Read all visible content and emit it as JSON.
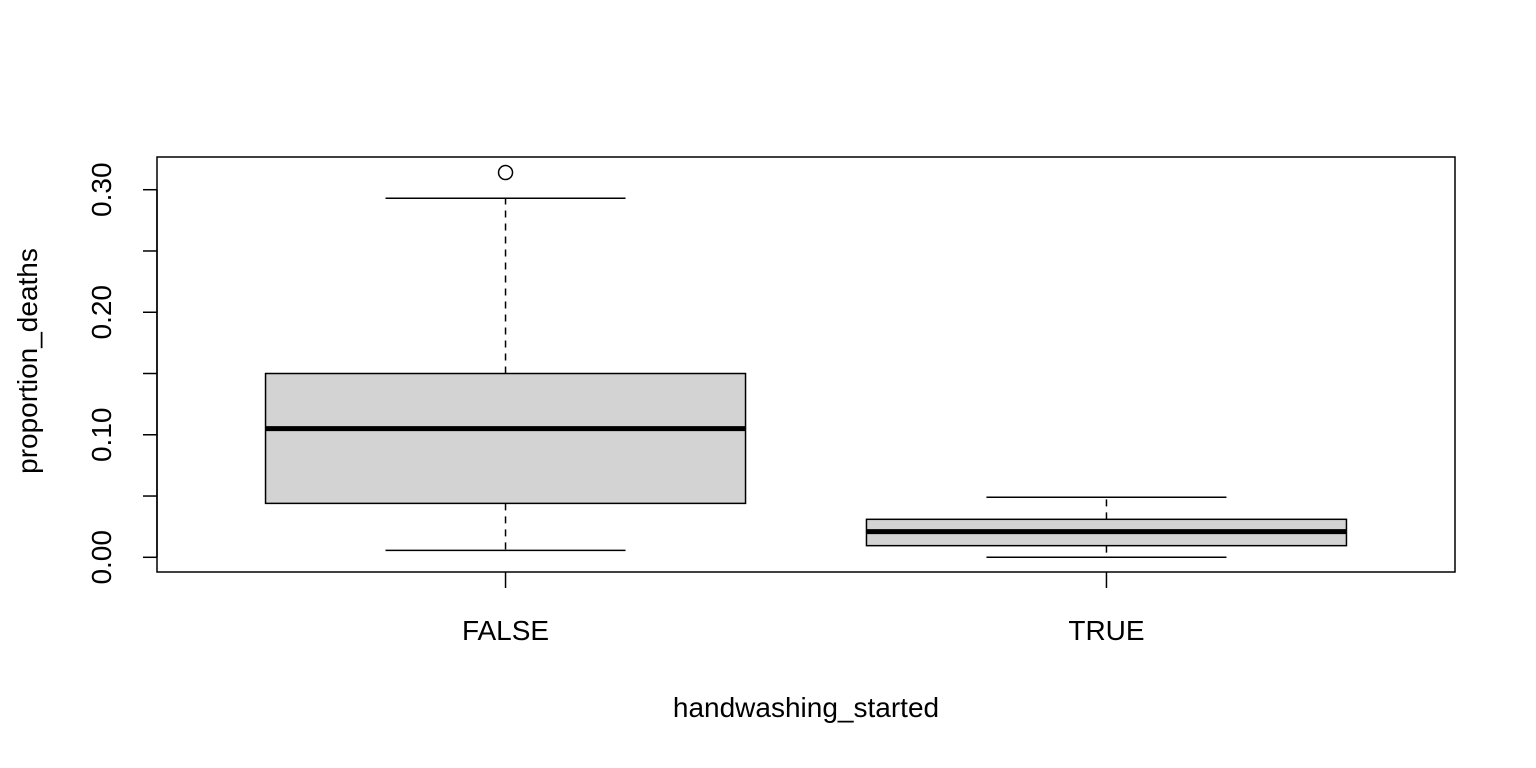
{
  "chart_data": {
    "type": "box",
    "title": "",
    "xlabel": "handwashing_started",
    "ylabel": "proportion_deaths",
    "categories": [
      "FALSE",
      "TRUE"
    ],
    "ylim": [
      -0.012,
      0.3267
    ],
    "yticks": [
      0.0,
      0.05,
      0.1,
      0.15,
      0.2,
      0.25,
      0.3
    ],
    "ytick_labels": [
      "0.00",
      "",
      "0.10",
      "",
      "0.20",
      "",
      "0.30"
    ],
    "box_fill": "#d3d3d3",
    "boxes": [
      {
        "category": "FALSE",
        "whisker_low": 0.0056,
        "q1": 0.044,
        "median": 0.105,
        "q3": 0.15,
        "whisker_high": 0.293,
        "outliers": [
          0.314
        ]
      },
      {
        "category": "TRUE",
        "whisker_low": 0.0,
        "q1": 0.0095,
        "median": 0.021,
        "q3": 0.031,
        "whisker_high": 0.049,
        "outliers": []
      }
    ],
    "grid": false,
    "legend": "none"
  }
}
